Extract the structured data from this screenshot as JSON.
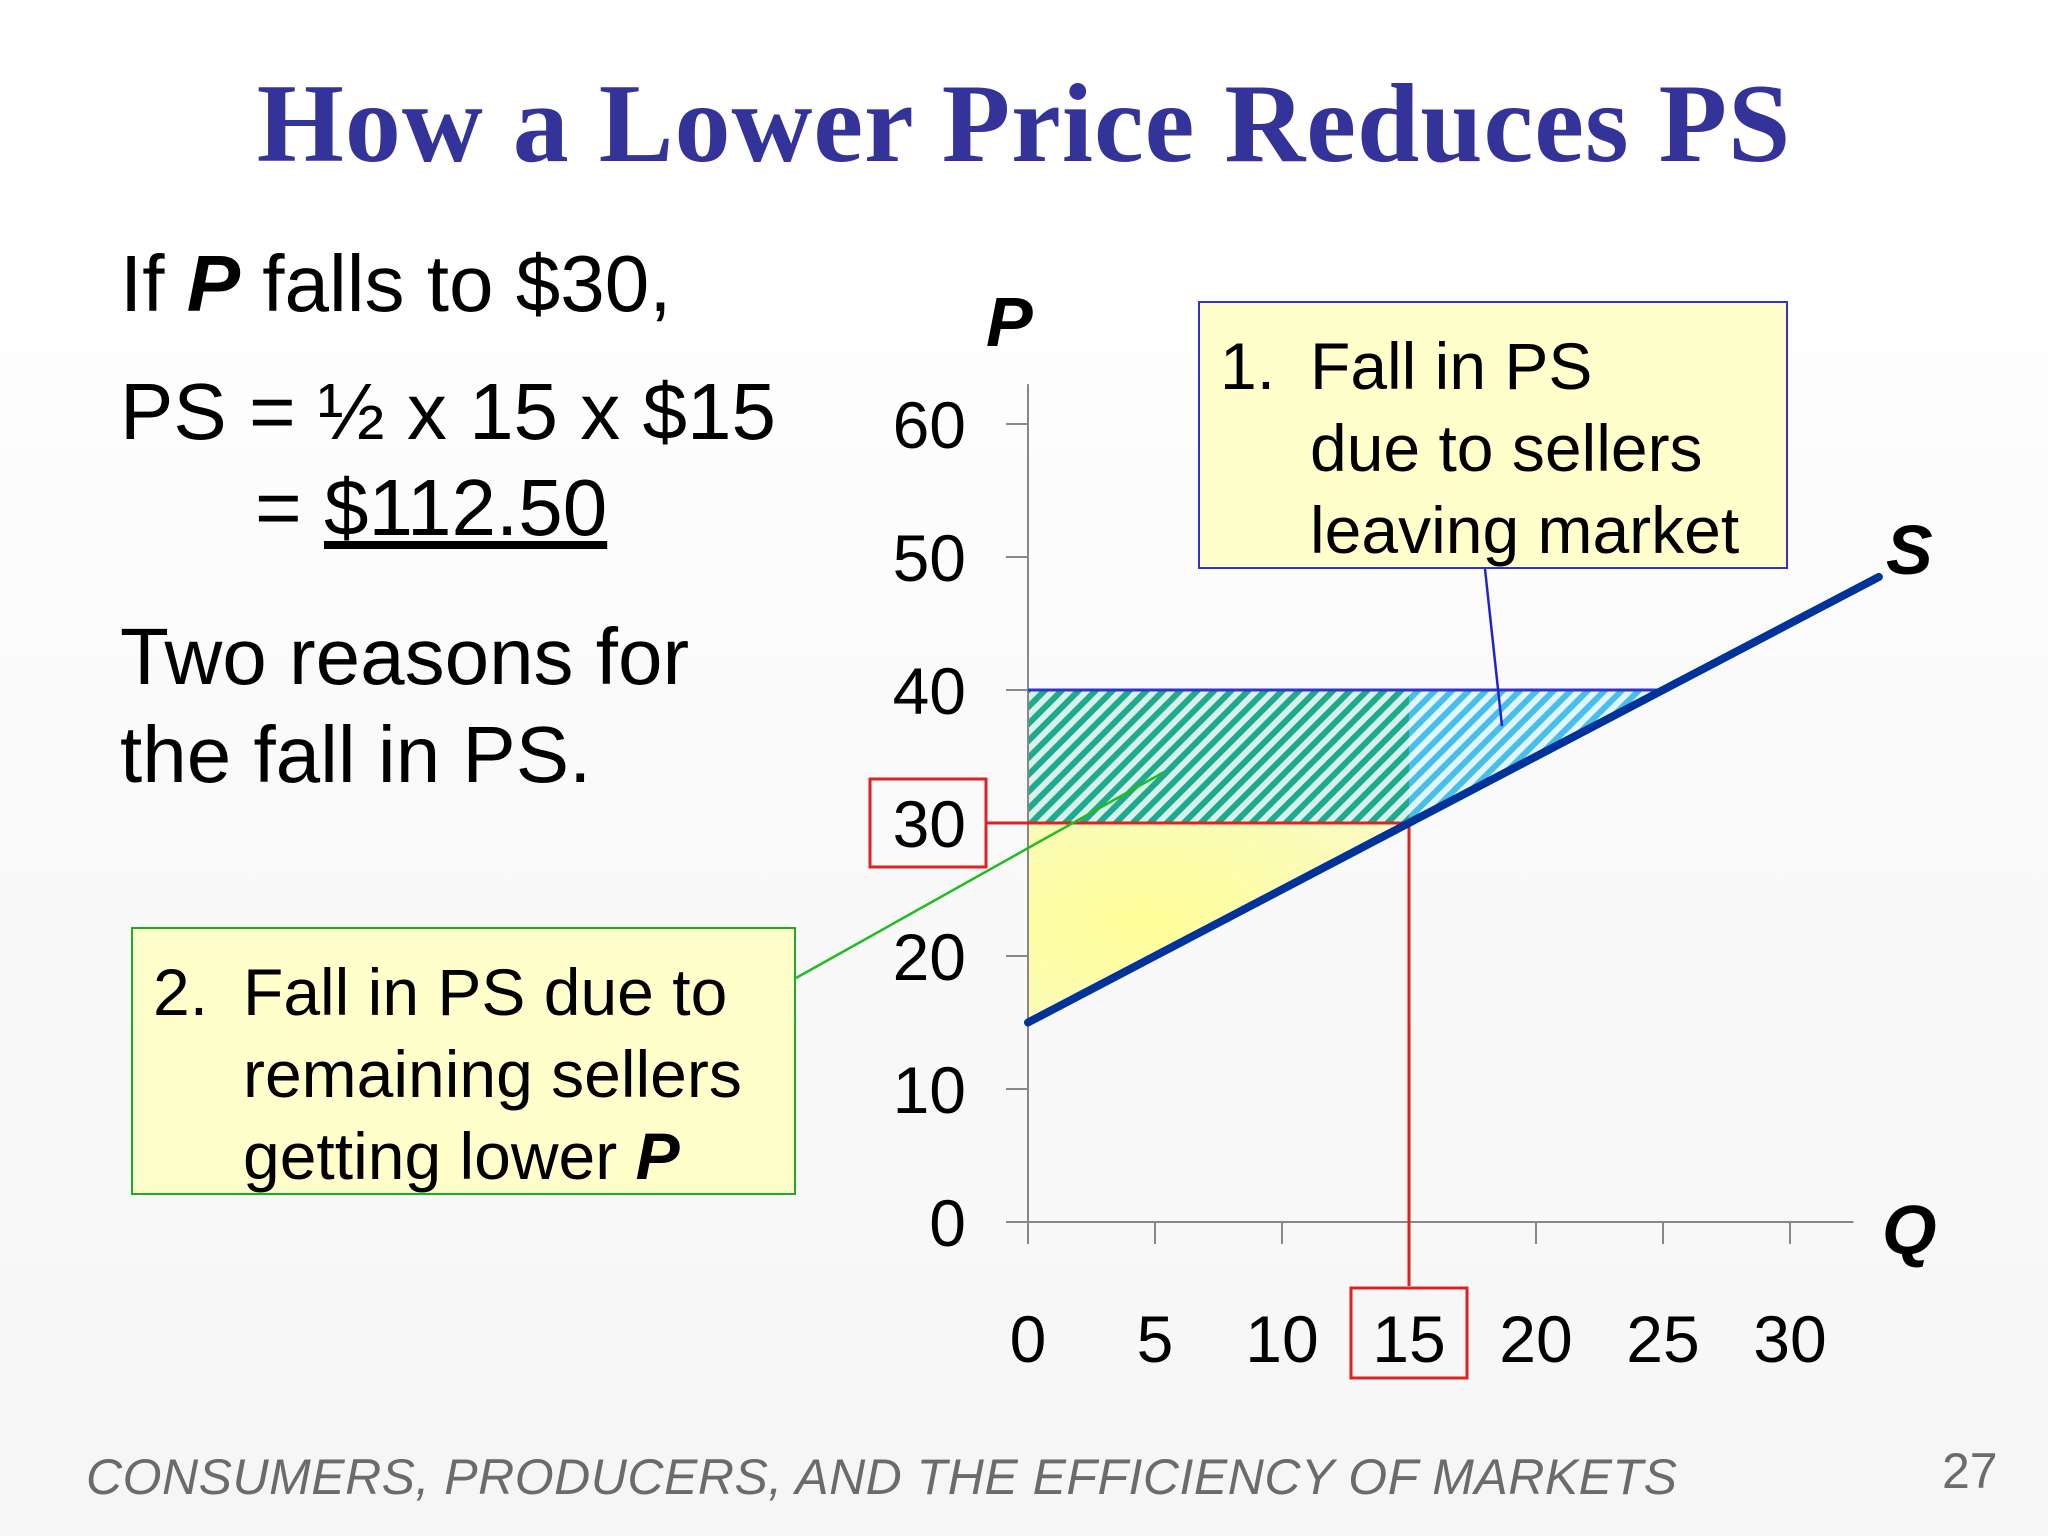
{
  "slide": {
    "title": "How a Lower Price Reduces PS",
    "line1_prefix": "If ",
    "line1_var": "P",
    "line1_suffix": "  falls to $30,",
    "line2": "PS = ½ x 15 x $15",
    "line3_prefix": "= ",
    "line3_value": "$112.50",
    "reasons_line1": "Two reasons for",
    "reasons_line2": "the fall in PS.",
    "footer": "CONSUMERS, PRODUCERS, AND THE EFFICIENCY OF MARKETS",
    "page_number": "27"
  },
  "callouts": {
    "first": {
      "number": "1.",
      "line1": "Fall in PS",
      "line2": "due to sellers",
      "line3": "leaving market"
    },
    "second": {
      "number": "2.",
      "line1": "Fall in PS due to",
      "line2": "remaining sellers",
      "line3_prefix": "getting lower ",
      "line3_var": "P"
    }
  },
  "chart_data": {
    "type": "line",
    "ylabel": "P",
    "xlabel": "Q",
    "xlim": [
      0,
      30
    ],
    "ylim": [
      0,
      60
    ],
    "x_ticks": [
      0,
      5,
      10,
      15,
      20,
      25,
      30
    ],
    "y_ticks": [
      0,
      10,
      20,
      30,
      40,
      50,
      60
    ],
    "x_tick_labels": [
      "0",
      "5",
      "10",
      "15",
      "20",
      "25",
      "30"
    ],
    "y_tick_labels": [
      "0",
      "10",
      "20",
      "30",
      "40",
      "50",
      "60"
    ],
    "highlighted_x_tick": "15",
    "highlighted_y_tick": "30",
    "series": [
      {
        "name": "S",
        "x": [
          0,
          33.5
        ],
        "y": [
          15,
          48.5
        ],
        "color": "#003399"
      }
    ],
    "regions": [
      {
        "name": "remaining-sellers-loss",
        "points": [
          [
            0,
            30
          ],
          [
            15,
            30
          ],
          [
            15,
            40
          ],
          [
            0,
            40
          ]
        ],
        "fill": "#2bb5a0",
        "pattern": "hatch"
      },
      {
        "name": "sellers-leaving-loss",
        "points": [
          [
            15,
            30
          ],
          [
            25,
            40
          ],
          [
            15,
            40
          ]
        ],
        "fill": "#5fc8ee",
        "pattern": "hatch"
      },
      {
        "name": "producer-surplus",
        "points": [
          [
            0,
            15
          ],
          [
            15,
            30
          ],
          [
            0,
            30
          ]
        ],
        "fill": "#ffff99"
      }
    ],
    "lines": {
      "old_price": {
        "y": 40,
        "x_from": 0,
        "x_to": 25,
        "color": "#3333cc"
      },
      "new_price": {
        "y": 30,
        "x_from": 0,
        "x_to": 15,
        "color": "#dd2222"
      },
      "new_quantity": {
        "x": 15,
        "y_from": 0,
        "y_to": 30,
        "color": "#dd2222"
      }
    },
    "grid": false
  }
}
